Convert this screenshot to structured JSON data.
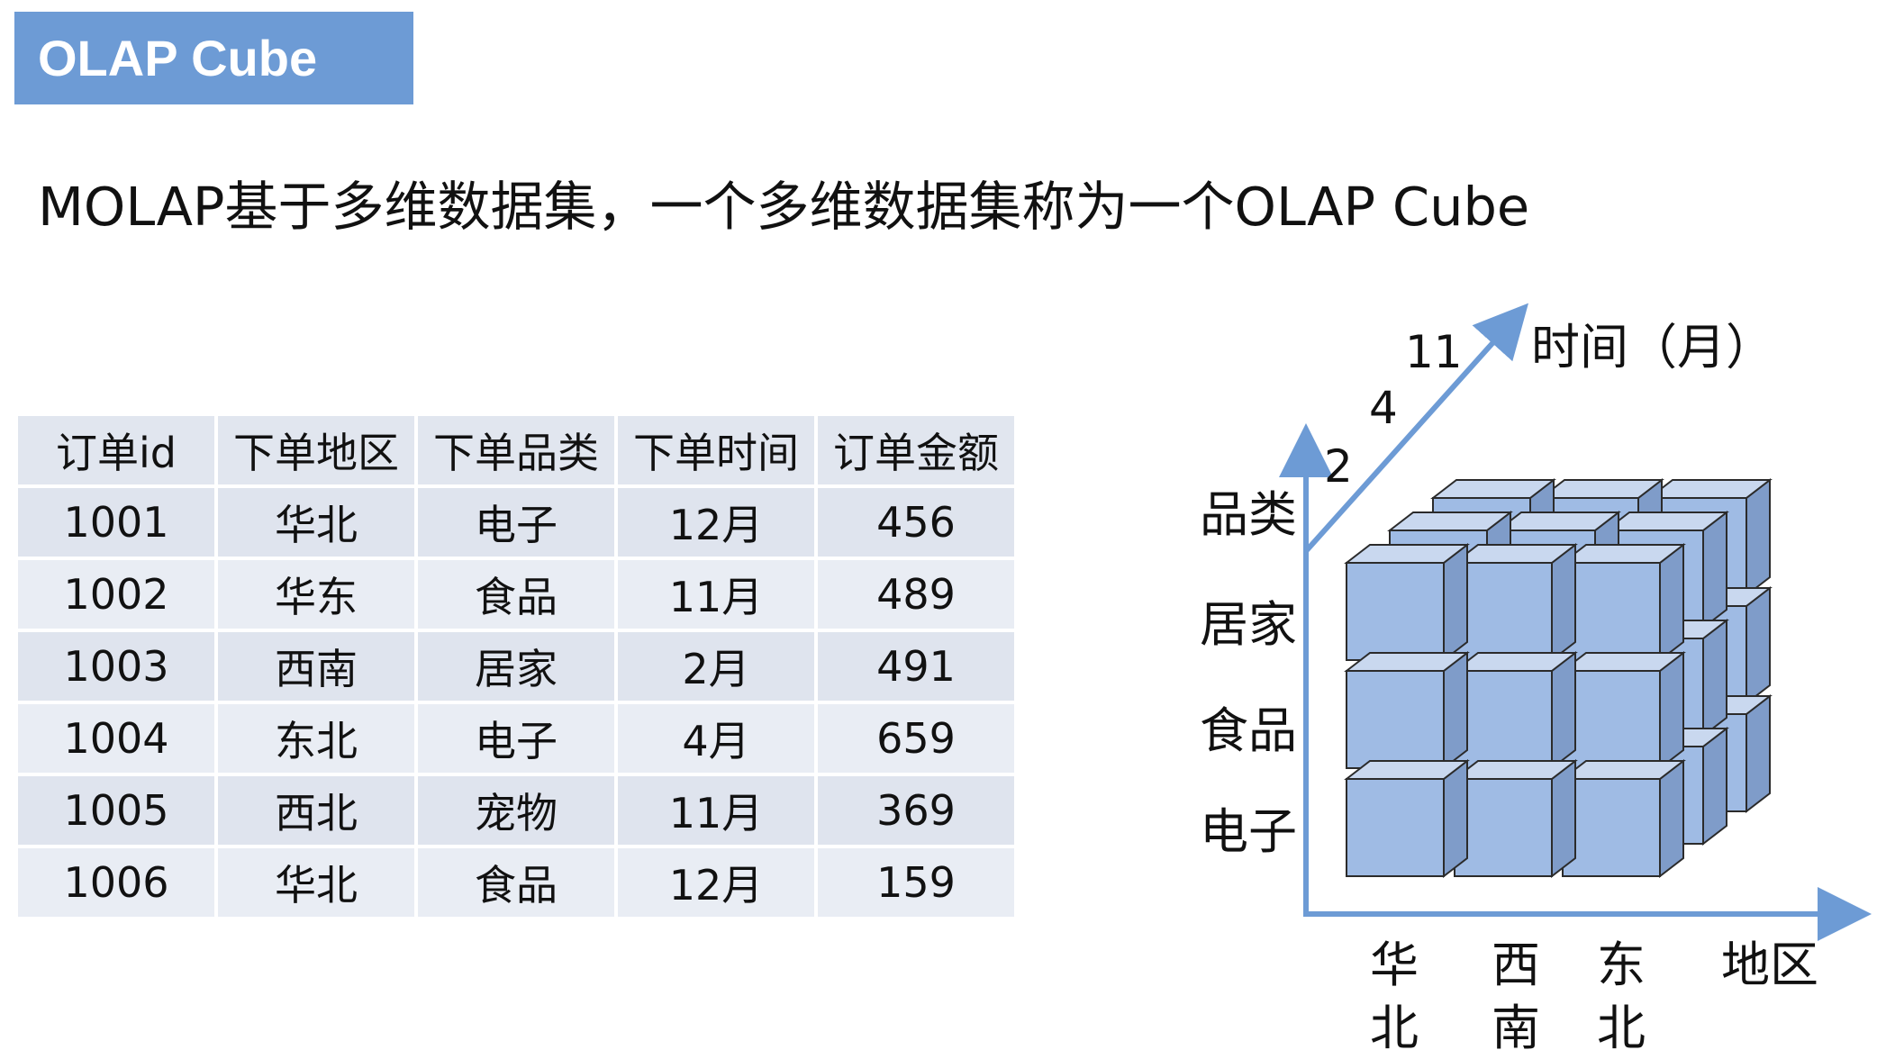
{
  "header": {
    "title": "OLAP Cube"
  },
  "subtitle": "MOLAP基于多维数据集，一个多维数据集称为一个OLAP Cube",
  "table": {
    "columns": [
      "订单id",
      "下单地区",
      "下单品类",
      "下单时间",
      "订单金额"
    ],
    "rows": [
      [
        "1001",
        "华北",
        "电子",
        "12月",
        "456"
      ],
      [
        "1002",
        "华东",
        "食品",
        "11月",
        "489"
      ],
      [
        "1003",
        "西南",
        "居家",
        "2月",
        "491"
      ],
      [
        "1004",
        "东北",
        "电子",
        "4月",
        "659"
      ],
      [
        "1005",
        "西北",
        "宠物",
        "11月",
        "369"
      ],
      [
        "1006",
        "华北",
        "食品",
        "12月",
        "159"
      ]
    ]
  },
  "cube": {
    "y_axis_labels": [
      "品类",
      "居家",
      "食品",
      "电子"
    ],
    "z_axis_label": "时间（月）",
    "z_axis_ticks": [
      "2",
      "4",
      "11"
    ],
    "x_axis_label": "地区",
    "x_axis_ticks": [
      {
        "line1": "华",
        "line2": "北"
      },
      {
        "line1": "西",
        "line2": "南"
      },
      {
        "line1": "东",
        "line2": "北"
      }
    ],
    "colors": {
      "axis": "#6d9bd5",
      "cube_front": "#9fbbe4",
      "cube_top": "#c9d8ef",
      "cube_side": "#7f9cc9",
      "cube_edge": "#2b2b2b"
    }
  }
}
